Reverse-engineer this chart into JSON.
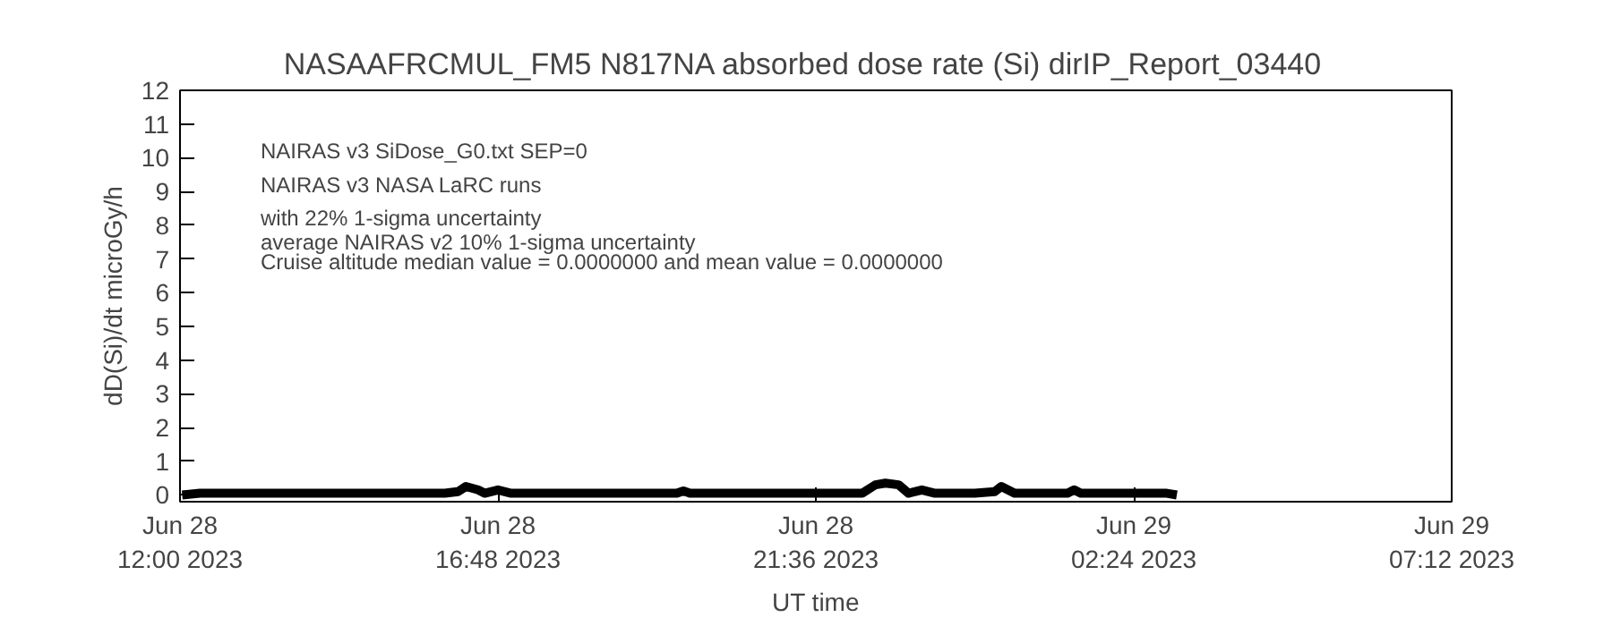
{
  "chart_data": {
    "type": "line",
    "title": "NASAAFRCMUL_FM5    N817NA absorbed dose rate (Si) dirIP_Report_03440",
    "xlabel": "UT time",
    "ylabel": "dD(Si)/dt microGy/h",
    "x": [
      "2023-06-28T12:02",
      "2023-06-28T12:18",
      "2023-06-28T13:00",
      "2023-06-28T14:00",
      "2023-06-28T15:00",
      "2023-06-28T16:00",
      "2023-06-28T16:12",
      "2023-06-28T16:19",
      "2023-06-28T16:30",
      "2023-06-28T16:36",
      "2023-06-28T16:48",
      "2023-06-28T17:00",
      "2023-06-28T18:00",
      "2023-06-28T19:00",
      "2023-06-28T19:30",
      "2023-06-28T19:36",
      "2023-06-28T19:42",
      "2023-06-28T20:30",
      "2023-06-28T21:30",
      "2023-06-28T22:18",
      "2023-06-28T22:30",
      "2023-06-28T22:39",
      "2023-06-28T22:51",
      "2023-06-28T23:00",
      "2023-06-28T23:12",
      "2023-06-28T23:24",
      "2023-06-29T00:00",
      "2023-06-29T00:18",
      "2023-06-29T00:24",
      "2023-06-29T00:36",
      "2023-06-29T01:00",
      "2023-06-29T01:24",
      "2023-06-29T01:30",
      "2023-06-29T01:36",
      "2023-06-29T02:00",
      "2023-06-29T02:30",
      "2023-06-29T02:54",
      "2023-06-29T03:03"
    ],
    "series": [
      {
        "color": "#000000",
        "values": [
          0,
          0.05,
          0.05,
          0.05,
          0.05,
          0.05,
          0.1,
          0.25,
          0.15,
          0.05,
          0.15,
          0.05,
          0.05,
          0.05,
          0.05,
          0.12,
          0.05,
          0.05,
          0.05,
          0.05,
          0.3,
          0.35,
          0.3,
          0.05,
          0.15,
          0.05,
          0.05,
          0.1,
          0.25,
          0.05,
          0.05,
          0.05,
          0.15,
          0.05,
          0.05,
          0.05,
          0.05,
          0
        ]
      }
    ],
    "xlim": [
      "2023-06-28T12:00",
      "2023-06-29T07:12"
    ],
    "xticks": [
      {
        "value": "2023-06-28T12:00",
        "label": "Jun 28\n12:00 2023"
      },
      {
        "value": "2023-06-28T16:48",
        "label": "Jun 28\n16:48 2023"
      },
      {
        "value": "2023-06-28T21:36",
        "label": "Jun 28\n21:36 2023"
      },
      {
        "value": "2023-06-29T02:24",
        "label": "Jun 29\n02:24 2023"
      },
      {
        "value": "2023-06-29T07:12",
        "label": "Jun 29\n07:12 2023"
      }
    ],
    "ylim": [
      -0.2,
      12
    ],
    "yticks": [
      0,
      1,
      2,
      3,
      4,
      5,
      6,
      7,
      8,
      9,
      10,
      11,
      12
    ],
    "annotations": [
      "NAIRAS v3 SiDose_G0.txt SEP=0",
      "NAIRAS v3 NASA LaRC runs",
      "with 22% 1-sigma uncertainty",
      "average NAIRAS v2 10% 1-sigma uncertainty",
      "Cruise altitude median value = 0.0000000 and mean value = 0.0000000"
    ],
    "grid": false,
    "marker": "none",
    "line_style": "solid"
  }
}
